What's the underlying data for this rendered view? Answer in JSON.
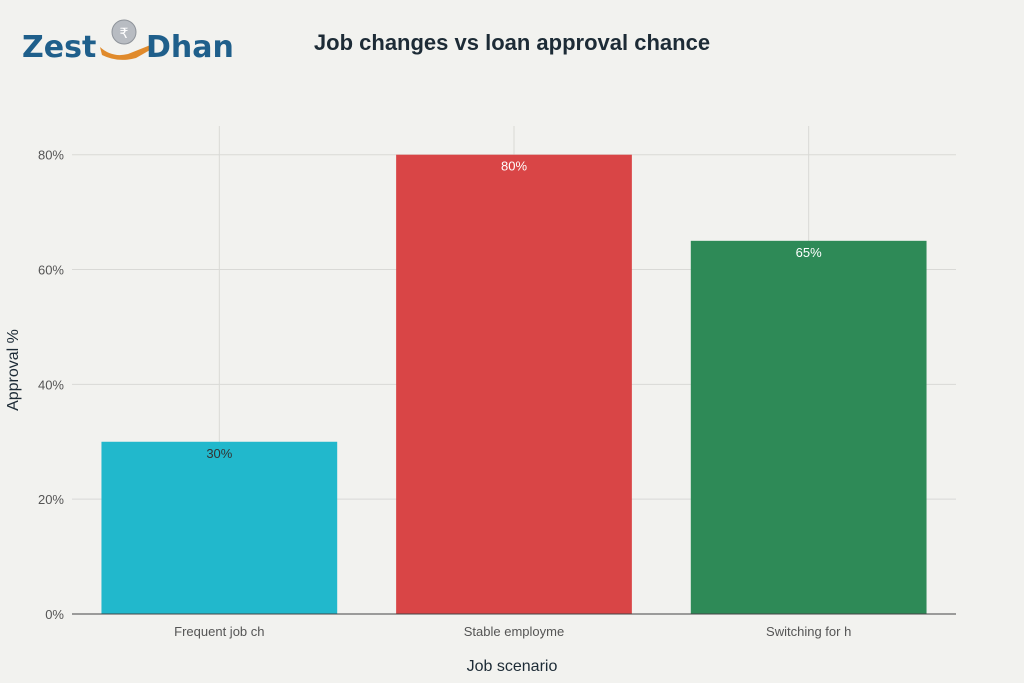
{
  "logo": {
    "text_left": "Zest",
    "text_right": "Dhan",
    "coin_symbol": "₹",
    "colors": {
      "text": "#1f5f8b",
      "hand": "#e08a2b",
      "coin": "#b8bcc2"
    }
  },
  "chart_data": {
    "type": "bar",
    "title": "Job changes vs loan approval chance",
    "xlabel": "Job scenario",
    "ylabel": "Approval %",
    "categories": [
      "Frequent job ch",
      "Stable employme",
      "Switching for h"
    ],
    "values": [
      30,
      80,
      65
    ],
    "value_labels": [
      "30%",
      "80%",
      "65%"
    ],
    "colors": [
      "#21b8cc",
      "#d94546",
      "#2e8a57"
    ],
    "label_colors": [
      "#333333",
      "#ffffff",
      "#ffffff"
    ],
    "ylim": [
      0,
      85
    ],
    "yticks": [
      0,
      20,
      40,
      60,
      80
    ],
    "ytick_labels": [
      "0%",
      "20%",
      "40%",
      "60%",
      "80%"
    ],
    "grid": true,
    "legend": "none"
  }
}
